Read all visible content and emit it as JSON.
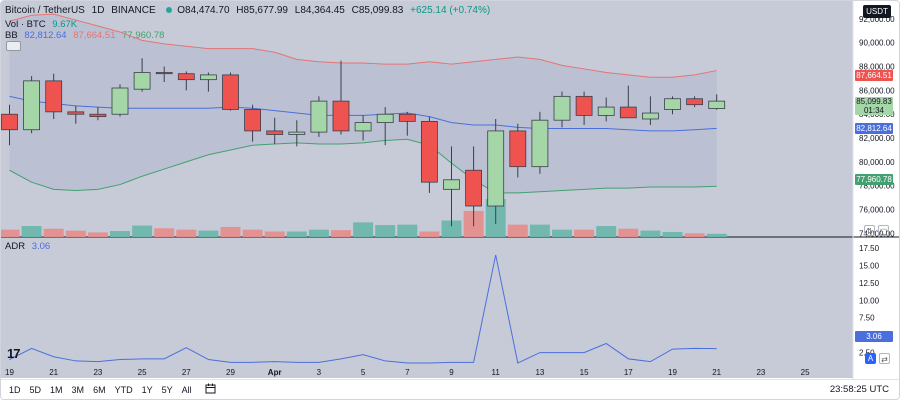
{
  "header": {
    "symbol": "Bitcoin / TetherUS",
    "interval": "1D",
    "exchange": "BINANCE",
    "ohlc": {
      "o": "O84,474.70",
      "h": "H85,677.99",
      "l": "L84,364.45",
      "c": "C85,099.83",
      "chg": "+625.14 (+0.74%)"
    }
  },
  "vol_legend": {
    "name": "Vol · BTC",
    "value": "9.67K"
  },
  "bb_legend": {
    "name": "BB",
    "basis": "82,812.64",
    "upper": "87,664.51",
    "lower": "77,960.78"
  },
  "adr_legend": {
    "name": "ADR",
    "value": "3.06"
  },
  "currency": "USDT",
  "price_labels": {
    "upper": "87,664.51",
    "last": "85,099.83",
    "countdown": "01:34",
    "basis": "82,812.64",
    "lower": "77,960.78",
    "adr": "3.06"
  },
  "buttons": {
    "settings": "A",
    "scale_a": "⇄"
  },
  "timeframes": [
    "1D",
    "5D",
    "1M",
    "3M",
    "6M",
    "YTD",
    "1Y",
    "5Y",
    "All"
  ],
  "clock": "23:58:25 UTC",
  "logo": "17",
  "colors": {
    "up": "#a5d6a7",
    "down": "#ef5350",
    "upper_band": "#e57373",
    "basis": "#4a6fdc",
    "lower_band": "#43a070",
    "bg_band": "#b9c0d3",
    "adr_line": "#4a6fdc"
  },
  "chart_data": [
    {
      "type": "candlestick",
      "x_ticks": [
        "19",
        "21",
        "23",
        "25",
        "27",
        "29",
        "Apr",
        "3",
        "5",
        "7",
        "9",
        "11",
        "13",
        "15",
        "17",
        "19",
        "21",
        "23",
        "25"
      ],
      "y_ticks": [
        74000,
        76000,
        78000,
        80000,
        82000,
        84000,
        86000,
        88000,
        90000,
        92000
      ],
      "ylim": [
        73700,
        93500
      ],
      "candles": [
        {
          "o": 84000,
          "h": 84800,
          "l": 81400,
          "c": 82700
        },
        {
          "o": 82700,
          "h": 87200,
          "l": 82400,
          "c": 86800
        },
        {
          "o": 86800,
          "h": 87400,
          "l": 83600,
          "c": 84200
        },
        {
          "o": 84200,
          "h": 84700,
          "l": 83200,
          "c": 84000
        },
        {
          "o": 84000,
          "h": 84600,
          "l": 83500,
          "c": 83800
        },
        {
          "o": 84000,
          "h": 86500,
          "l": 83800,
          "c": 86200
        },
        {
          "o": 86100,
          "h": 88700,
          "l": 85900,
          "c": 87500
        },
        {
          "o": 87500,
          "h": 88000,
          "l": 86700,
          "c": 87400
        },
        {
          "o": 87400,
          "h": 87600,
          "l": 86000,
          "c": 86900
        },
        {
          "o": 86900,
          "h": 87500,
          "l": 85900,
          "c": 87300
        },
        {
          "o": 87300,
          "h": 87500,
          "l": 84300,
          "c": 84400
        },
        {
          "o": 84400,
          "h": 84800,
          "l": 81700,
          "c": 82600
        },
        {
          "o": 82600,
          "h": 83700,
          "l": 81500,
          "c": 82300
        },
        {
          "o": 82300,
          "h": 83500,
          "l": 81300,
          "c": 82500
        },
        {
          "o": 82500,
          "h": 85500,
          "l": 82100,
          "c": 85100
        },
        {
          "o": 85100,
          "h": 88500,
          "l": 82300,
          "c": 82600
        },
        {
          "o": 82600,
          "h": 83900,
          "l": 81800,
          "c": 83300
        },
        {
          "o": 83300,
          "h": 84600,
          "l": 81400,
          "c": 84000
        },
        {
          "o": 84000,
          "h": 84200,
          "l": 82200,
          "c": 83400
        },
        {
          "o": 83400,
          "h": 83800,
          "l": 77400,
          "c": 78300
        },
        {
          "o": 77700,
          "h": 81300,
          "l": 74600,
          "c": 78500
        },
        {
          "o": 79300,
          "h": 81300,
          "l": 74600,
          "c": 76300
        },
        {
          "o": 76300,
          "h": 83600,
          "l": 74800,
          "c": 82600
        },
        {
          "o": 82600,
          "h": 83200,
          "l": 78700,
          "c": 79600
        },
        {
          "o": 79600,
          "h": 84200,
          "l": 79000,
          "c": 83500
        },
        {
          "o": 83500,
          "h": 85900,
          "l": 82900,
          "c": 85500
        },
        {
          "o": 85500,
          "h": 85900,
          "l": 83100,
          "c": 83900
        },
        {
          "o": 83900,
          "h": 85400,
          "l": 83400,
          "c": 84600
        },
        {
          "o": 84600,
          "h": 86400,
          "l": 83700,
          "c": 83700
        },
        {
          "o": 83600,
          "h": 85500,
          "l": 83100,
          "c": 84100
        },
        {
          "o": 84400,
          "h": 85500,
          "l": 84000,
          "c": 85300
        },
        {
          "o": 85300,
          "h": 85500,
          "l": 84600,
          "c": 84800
        },
        {
          "o": 84474.7,
          "h": 85677.99,
          "l": 84364.45,
          "c": 85099.83
        }
      ],
      "bb_upper": [
        91800,
        92300,
        92400,
        91900,
        91400,
        90900,
        90200,
        89900,
        89700,
        89500,
        89500,
        89500,
        89200,
        88600,
        88400,
        88300,
        88300,
        88200,
        88200,
        88400,
        88200,
        88400,
        88600,
        88800,
        88600,
        88100,
        87800,
        87500,
        87300,
        87100,
        87100,
        87300,
        87664.51
      ],
      "bb_basis": [
        85500,
        85100,
        84900,
        84700,
        84600,
        84500,
        84500,
        84500,
        84500,
        84500,
        84600,
        84500,
        84300,
        84100,
        83900,
        83900,
        83900,
        84000,
        84100,
        83800,
        83300,
        83100,
        83100,
        82900,
        82800,
        82800,
        82800,
        82800,
        82700,
        82600,
        82600,
        82700,
        82812.64
      ],
      "bb_lower": [
        79300,
        78300,
        77700,
        77600,
        77700,
        78100,
        78800,
        79400,
        80000,
        80600,
        81000,
        81400,
        81500,
        81600,
        81500,
        81500,
        81600,
        81800,
        81900,
        81400,
        79900,
        78500,
        77400,
        77400,
        77500,
        77600,
        77700,
        77800,
        77800,
        77900,
        77900,
        77900,
        77960.78
      ]
    },
    {
      "type": "bar",
      "name": "Vol · BTC",
      "values": [
        1.6,
        2.4,
        1.8,
        1.4,
        1.0,
        1.3,
        2.5,
        1.9,
        1.6,
        1.4,
        2.2,
        1.6,
        1.2,
        1.2,
        1.6,
        1.5,
        3.2,
        2.6,
        2.7,
        1.2,
        3.6,
        5.7,
        8.3,
        2.7,
        2.7,
        1.6,
        1.6,
        2.4,
        1.8,
        1.4,
        1.1,
        0.8,
        0.7
      ],
      "directions": [
        "d",
        "u",
        "d",
        "d",
        "d",
        "u",
        "u",
        "d",
        "d",
        "u",
        "d",
        "d",
        "d",
        "u",
        "u",
        "d",
        "u",
        "u",
        "u",
        "d",
        "u",
        "d",
        "u",
        "d",
        "u",
        "u",
        "d",
        "u",
        "d",
        "u",
        "u",
        "d",
        "u"
      ]
    },
    {
      "type": "line",
      "name": "ADR",
      "y_ticks": [
        2.5,
        5,
        7.5,
        10,
        12.5,
        15,
        17.5
      ],
      "ylim": [
        0,
        18.5
      ],
      "values": [
        1.5,
        3.1,
        1.9,
        1.3,
        1.2,
        1.5,
        1.6,
        1.6,
        3.2,
        1.5,
        1.1,
        1.1,
        1.2,
        1.1,
        1.1,
        1.6,
        2.2,
        1.3,
        1.0,
        1.0,
        1.1,
        1.1,
        16.5,
        1.0,
        2.5,
        2.5,
        2.5,
        3.8,
        1.6,
        1.2,
        3.0,
        3.1,
        3.06
      ]
    }
  ]
}
